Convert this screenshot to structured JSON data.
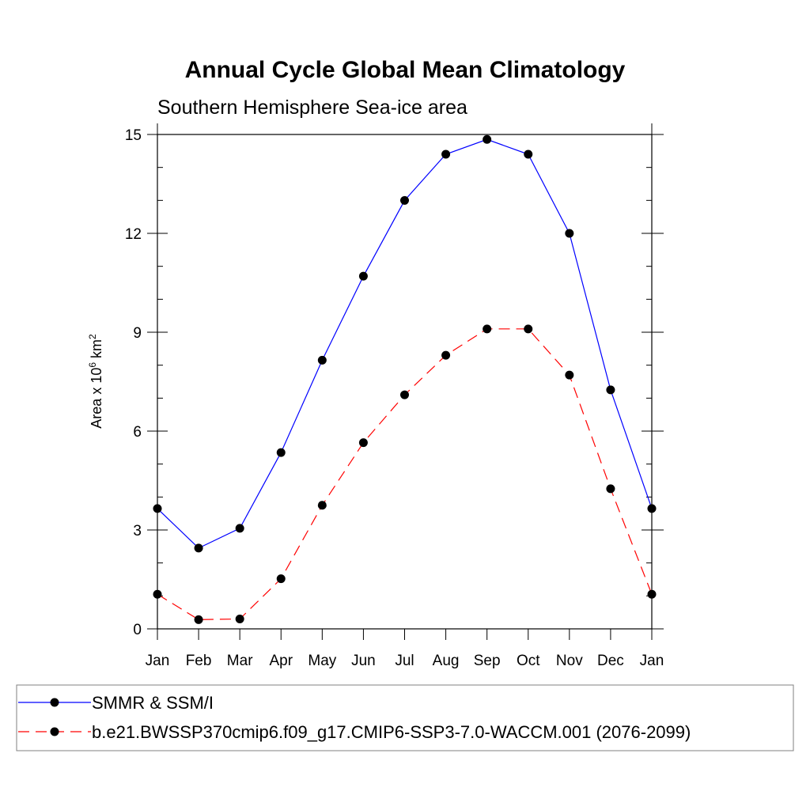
{
  "chart_data": {
    "type": "line",
    "title": "Annual Cycle Global Mean Climatology",
    "subtitle": "Southern Hemisphere Sea-ice area",
    "ylabel": {
      "prefix": "Area x 10",
      "sup1": "6",
      "mid": " km",
      "sup2": "2"
    },
    "xlabel": "",
    "categories": [
      "Jan",
      "Feb",
      "Mar",
      "Apr",
      "May",
      "Jun",
      "Jul",
      "Aug",
      "Sep",
      "Oct",
      "Nov",
      "Dec",
      "Jan"
    ],
    "ylim": [
      0,
      15
    ],
    "yticks": [
      0,
      3,
      6,
      9,
      12,
      15
    ],
    "grid": false,
    "legend_position": "bottom",
    "series": [
      {
        "name": "SMMR & SSM/I",
        "color": "#0000ff",
        "dash": "solid",
        "marker": "filled-circle",
        "values": [
          3.65,
          2.45,
          3.05,
          5.35,
          8.15,
          10.7,
          13.0,
          14.4,
          14.85,
          14.4,
          12.0,
          7.25,
          3.65
        ]
      },
      {
        "name": "b.e21.BWSSP370cmip6.f09_g17.CMIP6-SSP3-7.0-WACCM.001 (2076-2099)",
        "color": "#ff0000",
        "dash": "dashed",
        "marker": "filled-circle",
        "values": [
          1.05,
          0.28,
          0.3,
          1.52,
          3.75,
          5.65,
          7.1,
          8.3,
          9.1,
          9.1,
          7.7,
          4.25,
          1.05
        ]
      }
    ]
  }
}
